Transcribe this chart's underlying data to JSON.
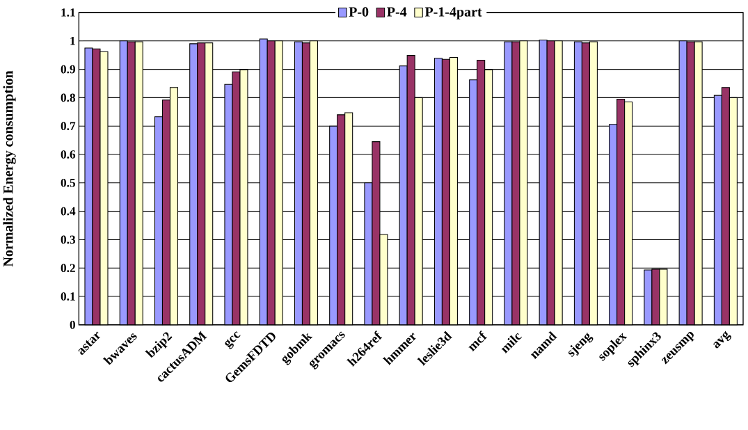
{
  "chart_data": {
    "type": "bar",
    "ylabel": "Normalized Energy consumption",
    "categories": [
      "astar",
      "bwaves",
      "bzip2",
      "cactusADM",
      "gcc",
      "GemsFDTD",
      "gobmk",
      "gromacs",
      "h264ref",
      "hmmer",
      "leslie3d",
      "mcf",
      "milc",
      "namd",
      "sjeng",
      "soplex",
      "sphinx3",
      "zeusmp",
      "avg"
    ],
    "series": [
      {
        "name": "P-0",
        "color": "#9999ff",
        "values": [
          0.975,
          1.0,
          0.733,
          0.99,
          0.847,
          1.007,
          0.997,
          0.7,
          0.5,
          0.912,
          0.939,
          0.863,
          0.997,
          1.003,
          0.997,
          0.706,
          0.193,
          1.0,
          0.808
        ]
      },
      {
        "name": "P-4",
        "color": "#993366",
        "values": [
          0.972,
          0.997,
          0.792,
          0.993,
          0.891,
          1.0,
          0.993,
          0.74,
          0.645,
          0.949,
          0.935,
          0.932,
          0.997,
          1.0,
          0.993,
          0.795,
          0.196,
          0.997,
          0.836
        ]
      },
      {
        "name": "P-1-4part",
        "color": "#ffffcc",
        "values": [
          0.962,
          0.997,
          0.836,
          0.993,
          0.898,
          1.0,
          1.0,
          0.747,
          0.318,
          0.8,
          0.942,
          0.898,
          1.0,
          1.0,
          0.997,
          0.785,
          0.196,
          0.997,
          0.8
        ]
      }
    ],
    "ylim": [
      0,
      1.1
    ],
    "yticks": [
      0,
      0.1,
      0.2,
      0.3,
      0.4,
      0.5,
      0.6,
      0.7,
      0.8,
      0.9,
      1,
      1.1
    ],
    "grid": "y",
    "legend": "top"
  }
}
